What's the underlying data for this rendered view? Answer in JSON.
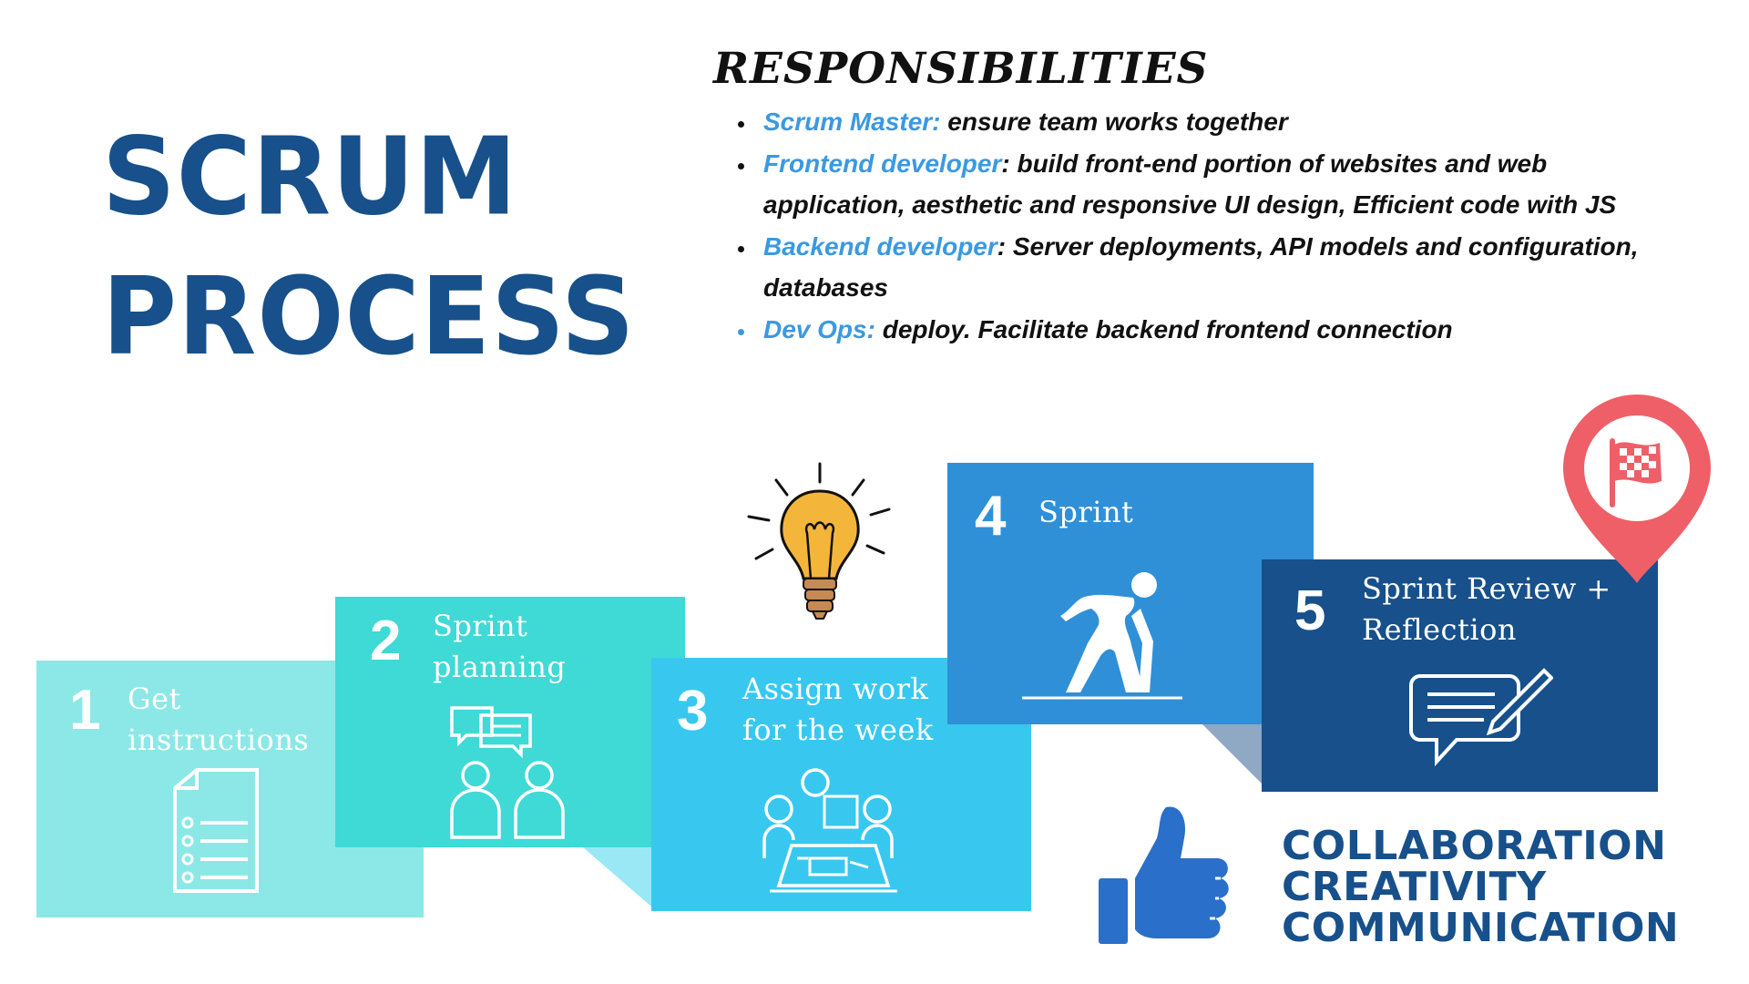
{
  "title": {
    "line1": "SCRUM",
    "line2": "PROCESS"
  },
  "responsibilities": {
    "heading": "RESPONSIBILITIES",
    "items": [
      {
        "role": "Scrum Master:",
        "text": " ensure team works together"
      },
      {
        "role": "Frontend developer",
        "text": ": build front-end portion of websites and web application, aesthetic and responsive UI design, Efficient code with JS"
      },
      {
        "role": "Backend developer",
        "text": ": Server deployments, API models and configuration, databases"
      },
      {
        "role": "Dev Ops:",
        "text": " deploy. Facilitate backend frontend connection"
      }
    ]
  },
  "steps": [
    {
      "number": "1",
      "label_line1": "Get",
      "label_line2": "instructions",
      "color": "#8ce8e6",
      "icon": "document-list-icon"
    },
    {
      "number": "2",
      "label_line1": "Sprint",
      "label_line2": "planning",
      "color": "#3fd9d6",
      "icon": "people-chat-icon"
    },
    {
      "number": "3",
      "label_line1": "Assign work",
      "label_line2": "for the week",
      "color": "#38c8ef",
      "icon": "team-meeting-icon"
    },
    {
      "number": "4",
      "label_line1": "Sprint",
      "label_line2": "",
      "color": "#2f90d8",
      "icon": "sprinter-icon"
    },
    {
      "number": "5",
      "label_line1": "Sprint Review +",
      "label_line2": "Reflection",
      "color": "#17508a",
      "icon": "message-pencil-icon"
    }
  ],
  "values": {
    "line1": "COLLABORATION",
    "line2": "CREATIVITY",
    "line3": "COMMUNICATION"
  },
  "icons": {
    "lightbulb": "lightbulb-icon",
    "thumbs_up": "thumbs-up-icon",
    "location_flag": "location-flag-icon"
  },
  "colors": {
    "title": "#17508a",
    "role": "#3b99e0",
    "pin": "#ee5f68",
    "thumb": "#2a6fc9",
    "bulb": "#f4b63a"
  }
}
